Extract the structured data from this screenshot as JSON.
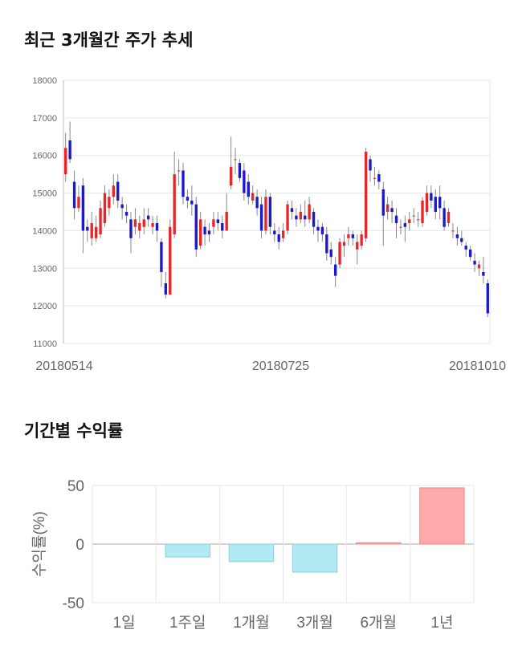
{
  "sections": {
    "price_trend_title": "최근 3개월간 주가 추세",
    "returns_title": "기간별 수익률"
  },
  "colors": {
    "up": "#e8252a",
    "down": "#1a1acc",
    "grid": "#e6e6e6",
    "positive_bar": "#ffaaaa",
    "negative_bar": "#b0eaf2"
  },
  "chart_data": [
    {
      "type": "candlestick",
      "title": "최근 3개월간 주가 추세",
      "xlabel": "",
      "ylabel": "",
      "x_tick_labels": [
        "20180514",
        "20180725",
        "20181010"
      ],
      "y_ticks": [
        11000,
        12000,
        13000,
        14000,
        15000,
        16000,
        17000,
        18000
      ],
      "ylim": [
        11000,
        18000
      ],
      "grid": true,
      "candles": [
        [
          15500,
          16200,
          15300,
          16600
        ],
        [
          16400,
          15900,
          15800,
          16900
        ],
        [
          15300,
          14600,
          14300,
          15600
        ],
        [
          14600,
          14900,
          14500,
          15200
        ],
        [
          15200,
          14000,
          13400,
          15400
        ],
        [
          14100,
          14000,
          13700,
          14300
        ],
        [
          13800,
          14200,
          13600,
          14500
        ],
        [
          13800,
          14100,
          13700,
          14400
        ],
        [
          13900,
          14600,
          13800,
          14800
        ],
        [
          14200,
          15000,
          14100,
          15200
        ],
        [
          14600,
          14900,
          14400,
          15100
        ],
        [
          14900,
          15200,
          14700,
          15500
        ],
        [
          15300,
          14800,
          14600,
          15500
        ],
        [
          14700,
          14600,
          14300,
          14900
        ],
        [
          14500,
          14400,
          14200,
          14700
        ],
        [
          14300,
          13800,
          13400,
          14500
        ],
        [
          14100,
          14300,
          13900,
          14600
        ],
        [
          14000,
          14200,
          13800,
          14400
        ],
        [
          14100,
          14300,
          13900,
          14600
        ],
        [
          14400,
          14300,
          14100,
          14600
        ],
        [
          14100,
          14200,
          13900,
          14400
        ],
        [
          14200,
          14000,
          13700,
          14400
        ],
        [
          13700,
          12900,
          12500,
          13800
        ],
        [
          12600,
          12300,
          12200,
          12900
        ],
        [
          12300,
          14100,
          12300,
          14300
        ],
        [
          13900,
          15500,
          13800,
          16100
        ],
        [
          15600,
          15600,
          15200,
          15900
        ],
        [
          15600,
          14900,
          14700,
          15800
        ],
        [
          14900,
          14800,
          14600,
          15100
        ],
        [
          14800,
          14700,
          14400,
          15200
        ],
        [
          14700,
          13500,
          13300,
          14900
        ],
        [
          13600,
          14300,
          13500,
          14500
        ],
        [
          14100,
          13900,
          13600,
          14300
        ],
        [
          14000,
          13900,
          13700,
          14200
        ],
        [
          14100,
          14300,
          13900,
          14500
        ],
        [
          14300,
          14200,
          14000,
          14500
        ],
        [
          14200,
          14000,
          13800,
          14400
        ],
        [
          14000,
          14500,
          14000,
          15000
        ],
        [
          15200,
          15700,
          15100,
          16500
        ],
        [
          15900,
          15900,
          15500,
          16200
        ],
        [
          15800,
          15400,
          15300,
          15900
        ],
        [
          15600,
          15000,
          14800,
          15800
        ],
        [
          15300,
          14900,
          14700,
          15500
        ],
        [
          14800,
          15000,
          14700,
          15200
        ],
        [
          14900,
          14600,
          14400,
          15100
        ],
        [
          14700,
          14000,
          13800,
          14900
        ],
        [
          14000,
          14900,
          13900,
          15100
        ],
        [
          14900,
          14100,
          13900,
          15000
        ],
        [
          14000,
          13900,
          13700,
          14200
        ],
        [
          13900,
          13700,
          13500,
          14100
        ],
        [
          13800,
          14000,
          13700,
          14200
        ],
        [
          14000,
          14700,
          13900,
          14800
        ],
        [
          14600,
          14500,
          14300,
          14800
        ],
        [
          14400,
          14300,
          14100,
          14600
        ],
        [
          14300,
          14500,
          14200,
          14700
        ],
        [
          14400,
          14300,
          14100,
          14800
        ],
        [
          14300,
          14700,
          14200,
          14900
        ],
        [
          14500,
          14100,
          13900,
          14600
        ],
        [
          14100,
          14000,
          13700,
          14300
        ],
        [
          14100,
          13900,
          13700,
          14200
        ],
        [
          13900,
          13400,
          13200,
          14100
        ],
        [
          13500,
          13300,
          13100,
          13700
        ],
        [
          13100,
          12800,
          12500,
          13300
        ],
        [
          13100,
          13700,
          13000,
          13800
        ],
        [
          13600,
          13700,
          13300,
          13900
        ],
        [
          13800,
          13900,
          13600,
          14100
        ],
        [
          13900,
          13800,
          13600,
          14000
        ],
        [
          13500,
          13700,
          13100,
          13900
        ],
        [
          13600,
          13900,
          13500,
          14000
        ],
        [
          13800,
          16100,
          13700,
          16200
        ],
        [
          15900,
          15600,
          15300,
          16000
        ],
        [
          15400,
          15400,
          15200,
          15700
        ],
        [
          15500,
          15300,
          15100,
          15600
        ],
        [
          15100,
          14400,
          13600,
          15300
        ],
        [
          14500,
          14700,
          14300,
          14900
        ],
        [
          14600,
          14500,
          14200,
          14800
        ],
        [
          14400,
          14200,
          13800,
          14600
        ],
        [
          14100,
          14100,
          13900,
          14300
        ],
        [
          14200,
          14100,
          13700,
          14400
        ],
        [
          14200,
          14300,
          14000,
          14500
        ],
        [
          14400,
          14400,
          14200,
          14600
        ],
        [
          14300,
          14300,
          14100,
          14500
        ],
        [
          14200,
          14800,
          14100,
          14900
        ],
        [
          14500,
          15000,
          14400,
          15200
        ],
        [
          15000,
          14800,
          14600,
          15200
        ],
        [
          14900,
          14500,
          14300,
          15100
        ],
        [
          14900,
          14600,
          14300,
          15200
        ],
        [
          14600,
          14100,
          14000,
          14800
        ],
        [
          14200,
          14500,
          14100,
          14600
        ],
        [
          14000,
          14000,
          13800,
          14200
        ],
        [
          13900,
          13800,
          13600,
          14100
        ],
        [
          13800,
          13700,
          13600,
          14000
        ],
        [
          13600,
          13500,
          13300,
          13700
        ],
        [
          13500,
          13300,
          13200,
          13600
        ],
        [
          13200,
          13100,
          12900,
          13400
        ],
        [
          13000,
          13100,
          12800,
          13200
        ],
        [
          12900,
          12800,
          12600,
          13300
        ],
        [
          12600,
          11800,
          11700,
          12700
        ]
      ]
    },
    {
      "type": "bar",
      "title": "기간별 수익률",
      "xlabel": "",
      "ylabel": "수익률(%)",
      "categories": [
        "1일",
        "1주일",
        "1개월",
        "3개월",
        "6개월",
        "1년"
      ],
      "values": [
        0,
        -11,
        -15,
        -24,
        1,
        48
      ],
      "y_ticks": [
        50,
        0,
        -50
      ],
      "ylim": [
        -50,
        50
      ],
      "grid": true
    }
  ]
}
